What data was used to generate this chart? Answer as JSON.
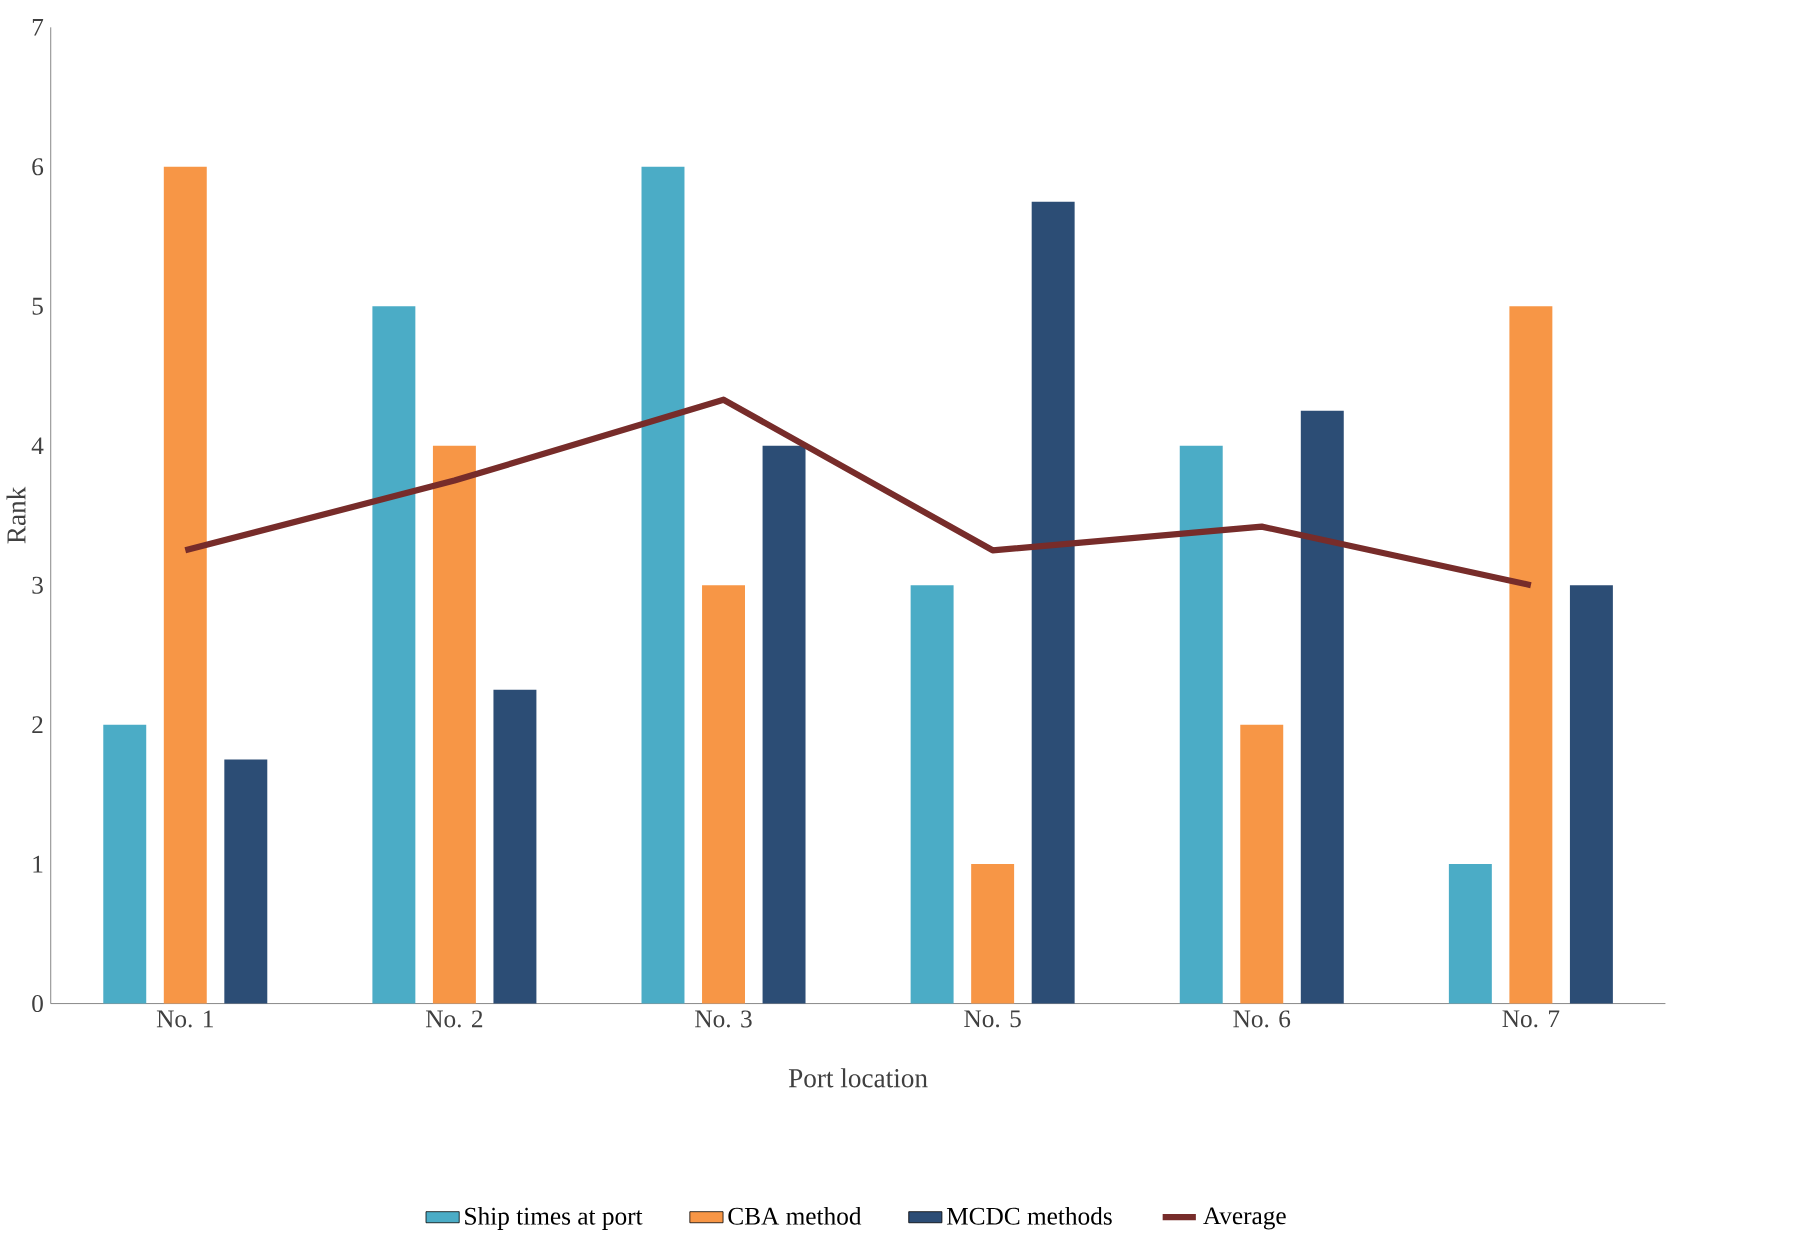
{
  "chart_data": {
    "type": "bar",
    "xlabel": "Port location",
    "ylabel": "Rank",
    "categories": [
      "No. 1",
      "No. 2",
      "No. 3",
      "No. 5",
      "No. 6",
      "No. 7"
    ],
    "series": [
      {
        "name": "Ship times at port",
        "color": "#4bacc6",
        "values": [
          2,
          5,
          6,
          3,
          4,
          1
        ]
      },
      {
        "name": "CBA method",
        "color": "#f79646",
        "values": [
          6,
          4,
          3,
          1,
          2,
          5
        ]
      },
      {
        "name": "MCDC methods",
        "color": "#2c4d75",
        "values": [
          1.75,
          2.25,
          4,
          5.75,
          4.25,
          3
        ]
      },
      {
        "name": "Average",
        "type": "line",
        "color": "#772c2a",
        "values": [
          3.25,
          3.75,
          4.33,
          3.25,
          3.42,
          3.0
        ]
      }
    ],
    "ylim": [
      0,
      7
    ],
    "yticks": [
      0,
      1,
      2,
      3,
      4,
      5,
      6,
      7
    ],
    "legend": "bottom",
    "marker": "none",
    "line_style": "solid"
  }
}
